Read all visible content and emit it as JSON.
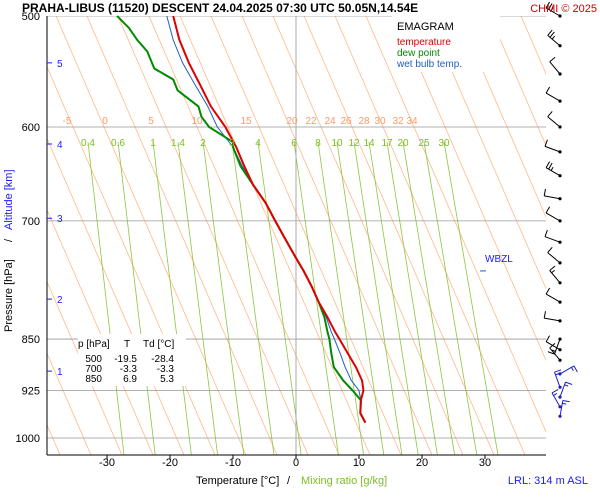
{
  "header": {
    "title": "PRAHA-LIBUS (11520)   DESCENT   24.04.2025 07:30 UTC   50.05N,14.54E",
    "copyright": "CHMI © 2025"
  },
  "legend": {
    "title": "EMAGRAM",
    "items": [
      {
        "label": "temperature",
        "color": "#e00000"
      },
      {
        "label": "dew point",
        "color": "#008a00"
      },
      {
        "label": "wet bulb temp.",
        "color": "#1f5fbf"
      }
    ]
  },
  "table": {
    "headers": [
      "p [hPa]",
      "T",
      "Td [°C]"
    ],
    "rows": [
      [
        "500",
        "-19.5",
        "-28.4"
      ],
      [
        "700",
        "-3.3",
        "-3.3"
      ],
      [
        "850",
        "6.9",
        "5.3"
      ]
    ]
  },
  "labels": {
    "wbzl": "WBZL",
    "lrl": "LRL: 314 m ASL",
    "ylabel_pressure": "Pressure [hPa]",
    "ylabel_sep": "/",
    "ylabel_altitude": "Altitude [km]",
    "xlabel_temp": "Temperature [°C]",
    "xlabel_sep": "/",
    "xlabel_mix": "Mixing ratio [g/kg]"
  },
  "colors": {
    "temperature": "#e00000",
    "dewpoint": "#008a00",
    "wetbulb": "#1f5fbf",
    "isotherm": "#ffb88c",
    "mixing": "#8cc63f",
    "isobar": "#999999",
    "zero": "#aaaaaa",
    "altitude": "#1a1aff"
  },
  "chart_data": {
    "type": "line",
    "pressure_ticks": [
      "500",
      "600",
      "700",
      "850",
      "925",
      "1000"
    ],
    "temperature_ticks": [
      "-30",
      "-20",
      "-10",
      "0",
      "10",
      "20",
      "30"
    ],
    "altitude_ticks": [
      "1",
      "2",
      "3",
      "4",
      "5"
    ],
    "altitude_tick_pressures": [
      896,
      796,
      697,
      617,
      540
    ],
    "isotherm_labels": [
      "-5",
      "0",
      "5",
      "10",
      "15",
      "20",
      "22",
      "24",
      "26",
      "28",
      "30",
      "32",
      "34"
    ],
    "mixing_ratio_labels": [
      "0.4",
      "0.6",
      "1",
      "1.4",
      "2",
      "3",
      "4",
      "6",
      "8",
      "10",
      "12",
      "14",
      "17",
      "20",
      "25",
      "30"
    ],
    "wbzl_pressure": 760,
    "series": [
      {
        "name": "temperature",
        "points": [
          [
            500,
            -19.5
          ],
          [
            520,
            -18.5
          ],
          [
            540,
            -17
          ],
          [
            560,
            -15.2
          ],
          [
            580,
            -13.5
          ],
          [
            600,
            -11.2
          ],
          [
            620,
            -9.5
          ],
          [
            640,
            -8.2
          ],
          [
            660,
            -6.8
          ],
          [
            680,
            -4.8
          ],
          [
            700,
            -3.3
          ],
          [
            720,
            -1.8
          ],
          [
            740,
            -0.3
          ],
          [
            760,
            1.2
          ],
          [
            780,
            2.5
          ],
          [
            800,
            3.6
          ],
          [
            820,
            5
          ],
          [
            840,
            6.2
          ],
          [
            850,
            6.9
          ],
          [
            870,
            8.2
          ],
          [
            890,
            9.5
          ],
          [
            910,
            10.5
          ],
          [
            925,
            10.7
          ],
          [
            940,
            10.3
          ],
          [
            960,
            10.2
          ],
          [
            975,
            11
          ]
        ]
      },
      {
        "name": "dew point",
        "points": [
          [
            500,
            -28.4
          ],
          [
            510,
            -26.5
          ],
          [
            520,
            -25.2
          ],
          [
            530,
            -23.6
          ],
          [
            545,
            -22.5
          ],
          [
            555,
            -19.5
          ],
          [
            565,
            -18.8
          ],
          [
            580,
            -15.5
          ],
          [
            590,
            -15
          ],
          [
            600,
            -13.8
          ],
          [
            615,
            -10
          ],
          [
            620,
            -10
          ],
          [
            640,
            -8.8
          ],
          [
            660,
            -6.8
          ],
          [
            680,
            -4.8
          ],
          [
            700,
            -3.3
          ],
          [
            720,
            -1.8
          ],
          [
            740,
            -0.3
          ],
          [
            760,
            1.2
          ],
          [
            780,
            2.5
          ],
          [
            800,
            3.6
          ],
          [
            820,
            4.5
          ],
          [
            840,
            5
          ],
          [
            850,
            5.3
          ],
          [
            870,
            5.6
          ],
          [
            890,
            6
          ],
          [
            910,
            7.5
          ],
          [
            925,
            9
          ],
          [
            940,
            10.3
          ],
          [
            960,
            10.2
          ],
          [
            975,
            11
          ]
        ]
      },
      {
        "name": "wet bulb temp.",
        "points": [
          [
            500,
            -20.5
          ],
          [
            520,
            -19.5
          ],
          [
            540,
            -18
          ],
          [
            560,
            -16
          ],
          [
            580,
            -14
          ],
          [
            600,
            -12.5
          ],
          [
            620,
            -10
          ],
          [
            640,
            -8.5
          ],
          [
            660,
            -6.8
          ],
          [
            680,
            -4.8
          ],
          [
            700,
            -3.3
          ],
          [
            720,
            -1.8
          ],
          [
            740,
            -0.3
          ],
          [
            760,
            1.2
          ],
          [
            780,
            2.5
          ],
          [
            800,
            3.6
          ],
          [
            820,
            4.8
          ],
          [
            840,
            5.6
          ],
          [
            850,
            6.1
          ],
          [
            870,
            7
          ],
          [
            890,
            7.8
          ],
          [
            910,
            8.8
          ],
          [
            925,
            10
          ],
          [
            940,
            10.3
          ],
          [
            960,
            10.2
          ],
          [
            975,
            11
          ]
        ]
      }
    ],
    "wind_barbs": [
      {
        "p": 500,
        "dir": 300,
        "speed": 15
      },
      {
        "p": 525,
        "dir": 310,
        "speed": 15
      },
      {
        "p": 550,
        "dir": 320,
        "speed": 10
      },
      {
        "p": 575,
        "dir": 300,
        "speed": 10
      },
      {
        "p": 600,
        "dir": 310,
        "speed": 10
      },
      {
        "p": 625,
        "dir": 290,
        "speed": 10
      },
      {
        "p": 650,
        "dir": 300,
        "speed": 15
      },
      {
        "p": 675,
        "dir": 280,
        "speed": 10
      },
      {
        "p": 700,
        "dir": 300,
        "speed": 10
      },
      {
        "p": 725,
        "dir": 290,
        "speed": 10
      },
      {
        "p": 750,
        "dir": 310,
        "speed": 10
      },
      {
        "p": 775,
        "dir": 320,
        "speed": 5
      },
      {
        "p": 800,
        "dir": 300,
        "speed": 10
      },
      {
        "p": 825,
        "dir": 280,
        "speed": 10
      },
      {
        "p": 850,
        "dir": 200,
        "speed": 5
      },
      {
        "p": 865,
        "dir": 300,
        "speed": 10
      },
      {
        "p": 880,
        "dir": 320,
        "speed": 10
      },
      {
        "p": 900,
        "dir": 60,
        "speed": 5
      },
      {
        "p": 920,
        "dir": 340,
        "speed": 5
      },
      {
        "p": 935,
        "dir": 20,
        "speed": 5
      },
      {
        "p": 950,
        "dir": 330,
        "speed": 5
      },
      {
        "p": 965,
        "dir": 10,
        "speed": 5
      }
    ]
  }
}
